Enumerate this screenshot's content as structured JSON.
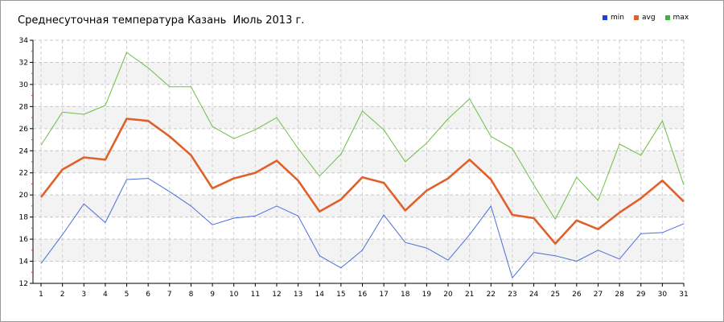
{
  "chart_data": {
    "type": "line",
    "title": "Среднесуточная температура Казань  Июль 2013 г.",
    "xlabel": "",
    "ylabel": "",
    "categories": [
      "1",
      "2",
      "3",
      "4",
      "5",
      "6",
      "7",
      "8",
      "9",
      "10",
      "11",
      "12",
      "13",
      "14",
      "15",
      "16",
      "17",
      "18",
      "19",
      "20",
      "21",
      "22",
      "23",
      "24",
      "25",
      "26",
      "27",
      "28",
      "29",
      "30",
      "31"
    ],
    "ylim": [
      12,
      34
    ],
    "yticks": [
      "12",
      "14",
      "16",
      "18",
      "20",
      "22",
      "24",
      "26",
      "28",
      "30",
      "32",
      "34"
    ],
    "grid": true,
    "legend_position": "top-right",
    "series": [
      {
        "name": "min",
        "color": "#4a6fd8",
        "values": [
          13.8,
          16.4,
          19.2,
          17.5,
          21.4,
          21.5,
          20.3,
          19.0,
          17.3,
          17.9,
          18.1,
          19.0,
          18.1,
          14.5,
          13.4,
          15.0,
          18.2,
          15.7,
          15.2,
          14.1,
          16.4,
          19.0,
          12.5,
          14.8,
          14.5,
          14.0,
          15.0,
          14.2,
          16.5,
          16.6,
          17.4
        ]
      },
      {
        "name": "avg",
        "color": "#e0602a",
        "values": [
          19.8,
          22.3,
          23.4,
          23.2,
          26.9,
          26.7,
          25.3,
          23.6,
          20.6,
          21.5,
          22.0,
          23.1,
          21.3,
          18.5,
          19.6,
          21.6,
          21.1,
          18.6,
          20.4,
          21.5,
          23.2,
          21.4,
          18.2,
          17.9,
          15.6,
          17.7,
          16.9,
          18.4,
          19.7,
          21.3,
          19.4
        ]
      },
      {
        "name": "max",
        "color": "#6cbf47",
        "values": [
          24.5,
          27.5,
          27.3,
          28.1,
          32.9,
          31.5,
          29.8,
          29.8,
          26.2,
          25.1,
          25.9,
          27.0,
          24.2,
          21.7,
          23.7,
          27.6,
          25.9,
          23.0,
          24.7,
          26.9,
          28.7,
          25.3,
          24.2,
          20.9,
          17.8,
          21.6,
          19.5,
          24.6,
          23.6,
          26.7,
          20.9
        ]
      }
    ]
  },
  "legend": [
    {
      "label": "min",
      "color": "#1e3fe0"
    },
    {
      "label": "avg",
      "color": "#e0602a"
    },
    {
      "label": "max",
      "color": "#3fb13f"
    }
  ]
}
